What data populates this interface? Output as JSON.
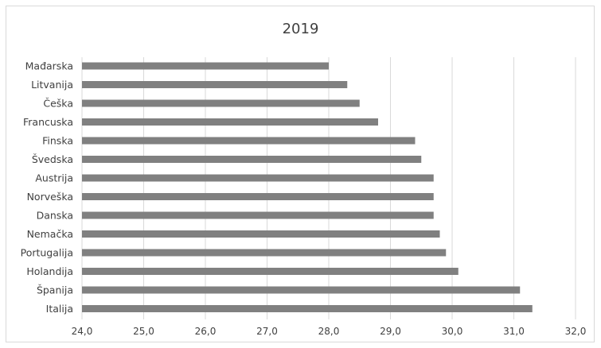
{
  "chart_data": {
    "type": "bar",
    "orientation": "horizontal",
    "title": "2019",
    "categories": [
      "Mađarska",
      "Litvanija",
      "Češka",
      "Francuska",
      "Finska",
      "Švedska",
      "Austrija",
      "Norveška",
      "Danska",
      "Nemačka",
      "Portugalija",
      "Holandija",
      "Španija",
      "Italija"
    ],
    "values": [
      28.0,
      28.3,
      28.5,
      28.8,
      29.4,
      29.5,
      29.7,
      29.7,
      29.7,
      29.8,
      29.9,
      30.1,
      31.1,
      31.3
    ],
    "xlim": [
      24.0,
      32.0
    ],
    "xticks": [
      24.0,
      25.0,
      26.0,
      27.0,
      28.0,
      29.0,
      30.0,
      31.0,
      32.0
    ],
    "xtick_labels": [
      "24,0",
      "25,0",
      "26,0",
      "27,0",
      "28,0",
      "29,0",
      "30,0",
      "31,0",
      "32,0"
    ],
    "xlabel": "",
    "ylabel": "",
    "grid": true,
    "legend": "none",
    "bar_color": "#808080",
    "grid_color": "#d9d9d9"
  }
}
